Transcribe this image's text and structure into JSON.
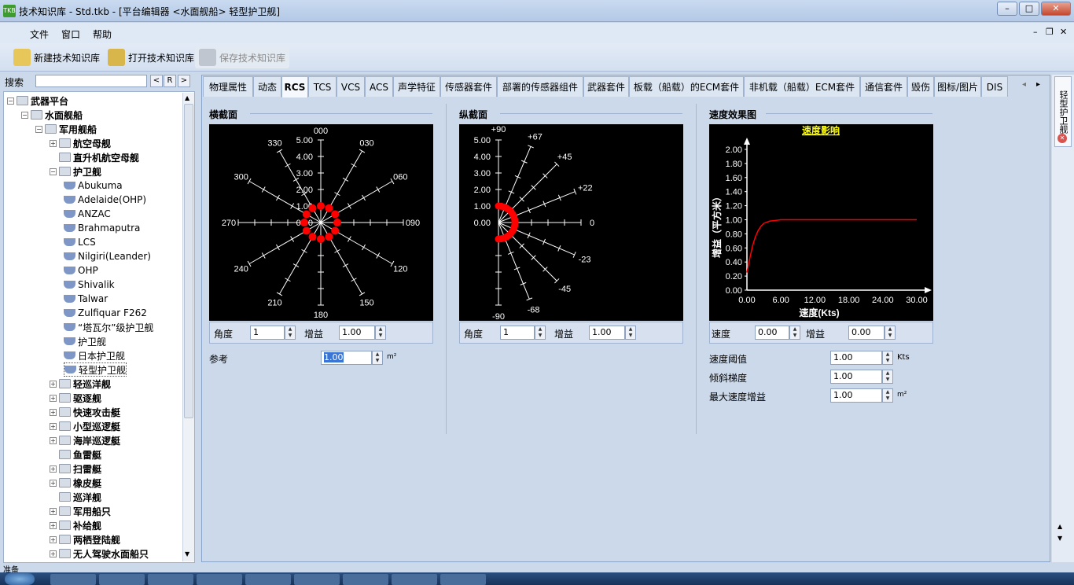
{
  "window": {
    "title": "技术知识库 - Std.tkb - [平台编辑器 <水面舰船> 轻型护卫舰]",
    "icon_text": "TKB"
  },
  "menu": [
    "文件",
    "窗口",
    "帮助"
  ],
  "toolbar": {
    "new": "新建技术知识库",
    "open": "打开技术知识库",
    "save": "保存技术知识库"
  },
  "search": {
    "label": "搜索",
    "value": "",
    "btn_left": "<",
    "btn_r": "R",
    "btn_right": ">"
  },
  "tree": [
    {
      "label": "武器平台",
      "lvl": 0,
      "exp": "-",
      "bold": true
    },
    {
      "label": "水面舰船",
      "lvl": 1,
      "exp": "-",
      "bold": true
    },
    {
      "label": "军用舰船",
      "lvl": 2,
      "exp": "-",
      "bold": true
    },
    {
      "label": "航空母舰",
      "lvl": 3,
      "exp": "+",
      "bold": true
    },
    {
      "label": "直升机航空母舰",
      "lvl": 3,
      "exp": "",
      "bold": true
    },
    {
      "label": "护卫舰",
      "lvl": 3,
      "exp": "-",
      "bold": true
    },
    {
      "label": "Abukuma",
      "lvl": 4,
      "ship": true
    },
    {
      "label": "Adelaide(OHP)",
      "lvl": 4,
      "ship": true
    },
    {
      "label": "ANZAC",
      "lvl": 4,
      "ship": true
    },
    {
      "label": "Brahmaputra",
      "lvl": 4,
      "ship": true
    },
    {
      "label": "LCS",
      "lvl": 4,
      "ship": true
    },
    {
      "label": "Nilgiri(Leander)",
      "lvl": 4,
      "ship": true
    },
    {
      "label": "OHP",
      "lvl": 4,
      "ship": true
    },
    {
      "label": "Shivalik",
      "lvl": 4,
      "ship": true
    },
    {
      "label": "Talwar",
      "lvl": 4,
      "ship": true
    },
    {
      "label": "Zulfiquar F262",
      "lvl": 4,
      "ship": true
    },
    {
      "label": "“塔瓦尔”级护卫舰",
      "lvl": 4,
      "ship": true
    },
    {
      "label": "护卫舰",
      "lvl": 4,
      "ship": true
    },
    {
      "label": "日本护卫舰",
      "lvl": 4,
      "ship": true
    },
    {
      "label": "轻型护卫舰",
      "lvl": 4,
      "ship": true,
      "selected": true
    },
    {
      "label": "轻巡洋舰",
      "lvl": 3,
      "exp": "+",
      "bold": true
    },
    {
      "label": "驱逐舰",
      "lvl": 3,
      "exp": "+",
      "bold": true
    },
    {
      "label": "快速攻击艇",
      "lvl": 3,
      "exp": "+",
      "bold": true
    },
    {
      "label": "小型巡逻艇",
      "lvl": 3,
      "exp": "+",
      "bold": true
    },
    {
      "label": "海岸巡逻艇",
      "lvl": 3,
      "exp": "+",
      "bold": true
    },
    {
      "label": "鱼雷艇",
      "lvl": 3,
      "exp": "",
      "bold": true
    },
    {
      "label": "扫雷艇",
      "lvl": 3,
      "exp": "+",
      "bold": true
    },
    {
      "label": "橡皮艇",
      "lvl": 3,
      "exp": "+",
      "bold": true
    },
    {
      "label": "巡洋舰",
      "lvl": 3,
      "exp": "",
      "bold": true
    },
    {
      "label": "军用船只",
      "lvl": 3,
      "exp": "+",
      "bold": true
    },
    {
      "label": "补给舰",
      "lvl": 3,
      "exp": "+",
      "bold": true
    },
    {
      "label": "两栖登陆舰",
      "lvl": 3,
      "exp": "+",
      "bold": true
    },
    {
      "label": "无人驾驶水面船只",
      "lvl": 3,
      "exp": "+",
      "bold": true
    }
  ],
  "tabs": [
    "物理属性",
    "动态",
    "RCS",
    "TCS",
    "VCS",
    "ACS",
    "声学特征",
    "传感器套件",
    "部署的传感器组件",
    "武器套件",
    "板载（船载）的ECM套件",
    "非机载（船载）ECM套件",
    "通信套件",
    "毁伤",
    "图标/图片",
    "DIS"
  ],
  "active_tab": "RCS",
  "horizontal": {
    "title": "横截面",
    "bearings": [
      "000",
      "030",
      "060",
      "090",
      "120",
      "150",
      "180",
      "210",
      "240",
      "270",
      "300",
      "330"
    ],
    "rings": [
      "0.00",
      "1.00",
      "2.00",
      "3.00",
      "4.00",
      "5.00"
    ],
    "angle_label": "角度",
    "angle_value": "1",
    "gain_label": "增益",
    "gain_value": "1.00",
    "ref_label": "参考",
    "ref_value": "1.00",
    "ref_unit": "m²"
  },
  "vertical": {
    "title": "纵截面",
    "angles": [
      "+90",
      "+67",
      "+45",
      "+22",
      "0",
      "-23",
      "-45",
      "-68",
      "-90"
    ],
    "rings": [
      "0.00",
      "1.00",
      "2.00",
      "3.00",
      "4.00",
      "5.00"
    ],
    "angle_label": "角度",
    "angle_value": "1",
    "gain_label": "增益",
    "gain_value": "1.00"
  },
  "speed": {
    "title": "速度效果图",
    "chart_title": "速度影响",
    "xlabel": "速度(Kts)",
    "ylabel": "增益（平方米）",
    "yticks": [
      "0.00",
      "0.20",
      "0.40",
      "0.60",
      "0.80",
      "1.00",
      "1.20",
      "1.40",
      "1.60",
      "1.80",
      "2.00"
    ],
    "xticks": [
      "0.00",
      "6.00",
      "12.00",
      "18.00",
      "24.00",
      "30.00"
    ],
    "speed_label": "速度",
    "speed_value": "0.00",
    "gain_label": "增益",
    "gain_value": "0.00",
    "thresh_label": "速度阈值",
    "thresh_value": "1.00",
    "thresh_unit": "Kts",
    "slope_label": "倾斜梯度",
    "slope_value": "1.00",
    "max_label": "最大速度增益",
    "max_value": "1.00",
    "max_unit": "m²"
  },
  "chart_data": {
    "type": "line",
    "title": "速度影响",
    "xlabel": "速度(Kts)",
    "ylabel": "增益（平方米）",
    "xlim": [
      0,
      30
    ],
    "ylim": [
      0,
      2
    ],
    "series": [
      {
        "x": [
          0,
          0.5,
          1,
          1.5,
          2,
          2.5,
          3,
          4,
          5,
          6,
          8,
          10,
          30
        ],
        "values": [
          0.25,
          0.45,
          0.63,
          0.76,
          0.85,
          0.91,
          0.95,
          0.98,
          0.99,
          1.0,
          1.0,
          1.0,
          1.0
        ]
      }
    ]
  },
  "dock": {
    "label": "轻型护卫舰"
  },
  "status": {
    "text": "准备"
  },
  "colors": {
    "accent": "#ff0000",
    "chart_bg": "#000000",
    "title_yellow": "#ffff00"
  }
}
